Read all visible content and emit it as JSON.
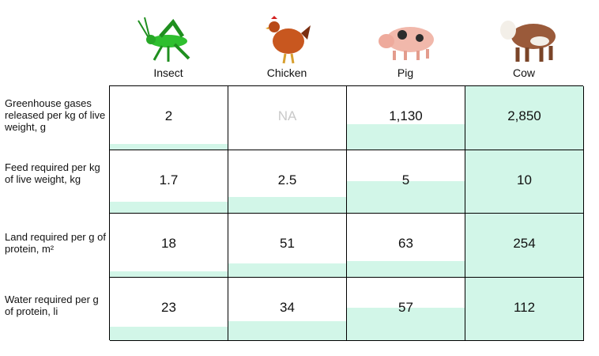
{
  "animals": [
    "Insect",
    "Chicken",
    "Pig",
    "Cow"
  ],
  "rows": [
    {
      "label": "Greenhouse gases released per kg of live weight, g",
      "values": [
        "2",
        "NA",
        "1,130",
        "2,850"
      ],
      "numeric": [
        2,
        null,
        1130,
        2850
      ]
    },
    {
      "label": "Feed required per kg of live weight, kg",
      "values": [
        "1.7",
        "2.5",
        "5",
        "10"
      ],
      "numeric": [
        1.7,
        2.5,
        5,
        10
      ]
    },
    {
      "label": "Land required per g of protein, m²",
      "values": [
        "18",
        "51",
        "63",
        "254"
      ],
      "numeric": [
        18,
        51,
        63,
        254
      ]
    },
    {
      "label": "Water required per g of protein, li",
      "values": [
        "23",
        "34",
        "57",
        "112"
      ],
      "numeric": [
        23,
        34,
        57,
        112
      ]
    }
  ],
  "colors": {
    "fill": "#d2f6e8",
    "na": "#c9c9c9",
    "border": "#000000"
  },
  "icons": [
    "grasshopper-icon",
    "chicken-icon",
    "pig-icon",
    "cow-icon"
  ]
}
